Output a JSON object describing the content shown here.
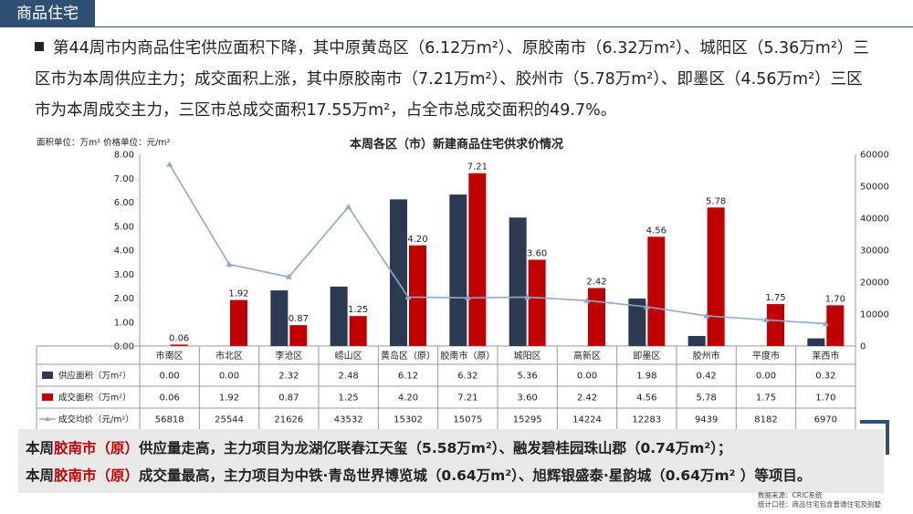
{
  "header_tag": "商品住宅",
  "summary": "第44周市内商品住宅供应面积下降，其中原黄岛区（6.12万m²）、原胶南市（6.32万m²）、城阳区（5.36万m²）三区市为本周供应主力；成交面积上涨，其中原胶南市（7.21万m²）、胶州市（5.78万m²）、即墨区（4.56万m²）三区市为本周成交主力，三区市总成交面积17.55万m²，占全市总成交面积的49.7%。",
  "unit_label": "面积单位：万m² 价格单位：元/m²",
  "chart_data": {
    "type": "bar",
    "title": "本周各区（市）新建商品住宅供求价情况",
    "categories": [
      "市南区",
      "市北区",
      "李沧区",
      "崂山区",
      "黄岛区（原）",
      "胶南市（原）",
      "城阳区",
      "高新区",
      "即墨区",
      "胶州市",
      "平度市",
      "莱西市"
    ],
    "series": [
      {
        "name": "供应面积（万m²）",
        "type": "bar",
        "axis": "left",
        "color": "#2b3a50",
        "values": [
          0.0,
          0.0,
          2.32,
          2.48,
          6.12,
          6.32,
          5.36,
          0.0,
          1.98,
          0.42,
          0.0,
          0.32
        ],
        "display": [
          "0.00",
          "0.00",
          "2.32",
          "2.48",
          "6.12",
          "6.32",
          "5.36",
          "0.00",
          "1.98",
          "0.42",
          "0.00",
          "0.32"
        ]
      },
      {
        "name": "成交面积（万m²）",
        "type": "bar",
        "axis": "left",
        "color": "#c00000",
        "values": [
          0.06,
          1.92,
          0.87,
          1.25,
          4.2,
          7.21,
          3.6,
          2.42,
          4.56,
          5.78,
          1.75,
          1.7
        ],
        "display": [
          "0.06",
          "1.92",
          "0.87",
          "1.25",
          "4.20",
          "7.21",
          "3.60",
          "2.42",
          "4.56",
          "5.78",
          "1.75",
          "1.70"
        ]
      },
      {
        "name": "成交均价（元/m²）",
        "type": "line",
        "axis": "right",
        "color": "#8eaacb",
        "values": [
          56818,
          25544,
          21626,
          43532,
          15302,
          15075,
          15295,
          14224,
          12283,
          9439,
          8182,
          6970
        ],
        "display": [
          "56818",
          "25544",
          "21626",
          "43532",
          "15302",
          "15075",
          "15295",
          "14224",
          "12283",
          "9439",
          "8182",
          "6970"
        ]
      }
    ],
    "left_ticks": [
      "0.00",
      "1.00",
      "2.00",
      "3.00",
      "4.00",
      "5.00",
      "6.00",
      "7.00",
      "8.00"
    ],
    "right_ticks": [
      "0",
      "10000",
      "20000",
      "30000",
      "40000",
      "50000",
      "60000"
    ],
    "ylim_left": [
      0,
      8
    ],
    "ylim_right": [
      0,
      60000
    ]
  },
  "highlight_lines": [
    {
      "pre": "本周",
      "red": "胶南市（原）",
      "post": "供应量走高，主力项目为龙湖亿联春江天玺（5.58万m²）、融发碧桂园珠山郡（0.74万m²）；"
    },
    {
      "pre": "本周",
      "red": "胶南市（原）",
      "post": "成交量最高，主力项目为中铁·青岛世界博览城（0.64万m²）、旭辉银盛泰·星韵城（0.64万m² ）等项目。"
    }
  ],
  "source_line1": "数据来源：CRIC系统",
  "source_line2": "统计口径：商品住宅包含普通住宅及别墅",
  "colors": {
    "accent": "#2f4f73",
    "supply": "#2b3a50",
    "deal": "#c00000",
    "price": "#8eaacb"
  }
}
